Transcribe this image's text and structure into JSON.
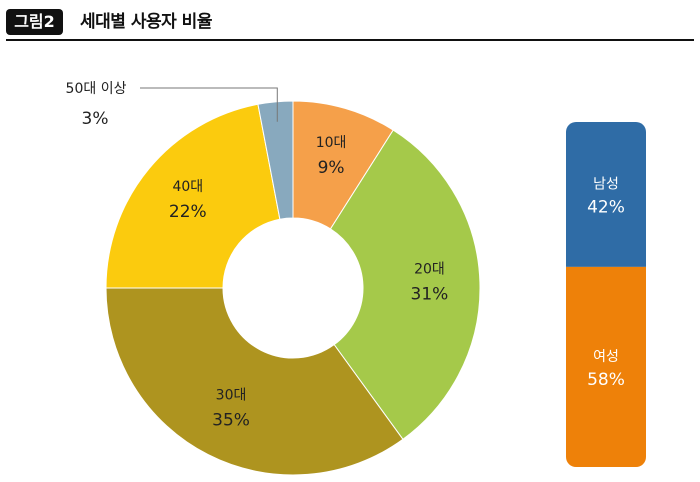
{
  "header": {
    "badge": "그림2",
    "title": "세대별 사용자 비율"
  },
  "chart_data": [
    {
      "type": "pie",
      "categories": [
        "10대",
        "20대",
        "30대",
        "40대",
        "50대 이상"
      ],
      "values": [
        9,
        31,
        35,
        22,
        3
      ],
      "labels": [
        "9%",
        "31%",
        "35%",
        "22%",
        "3%"
      ],
      "colors": [
        "#F5A04A",
        "#A5C94A",
        "#AE941F",
        "#FBCB0E",
        "#88A9BE"
      ]
    },
    {
      "type": "bar",
      "stacked": true,
      "categories": [
        "남성",
        "여성"
      ],
      "values": [
        42,
        58
      ],
      "labels": [
        "42%",
        "58%"
      ],
      "colors": [
        "#2F6CA6",
        "#EE8109"
      ]
    }
  ]
}
